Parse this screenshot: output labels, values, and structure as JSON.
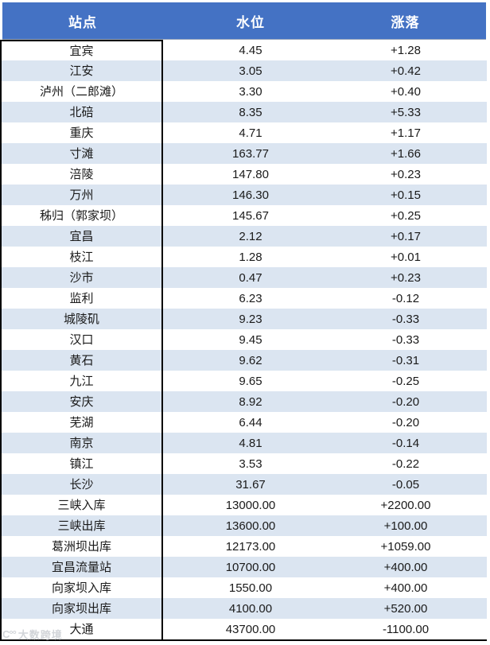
{
  "colors": {
    "header_bg": "#4472C4",
    "stripe": "#DBE5F1",
    "first_column_border": "#000000",
    "header_text": "#ffffff",
    "body_text": "#1a1a1a"
  },
  "chart_data": {
    "type": "table",
    "title": "",
    "columns": [
      "站点",
      "水位",
      "涨落"
    ],
    "rows": [
      [
        "宜宾",
        "4.45",
        "+1.28"
      ],
      [
        "江安",
        "3.05",
        "+0.42"
      ],
      [
        "泸州（二郎滩）",
        "3.30",
        "+0.40"
      ],
      [
        "北碚",
        "8.35",
        "+5.33"
      ],
      [
        "重庆",
        "4.71",
        "+1.17"
      ],
      [
        "寸滩",
        "163.77",
        "+1.66"
      ],
      [
        "涪陵",
        "147.80",
        "+0.23"
      ],
      [
        "万州",
        "146.30",
        "+0.15"
      ],
      [
        "秭归（郭家坝）",
        "145.67",
        "+0.25"
      ],
      [
        "宜昌",
        "2.12",
        "+0.17"
      ],
      [
        "枝江",
        "1.28",
        "+0.01"
      ],
      [
        "沙市",
        "0.47",
        "+0.23"
      ],
      [
        "监利",
        "6.23",
        "-0.12"
      ],
      [
        "城陵矶",
        "9.23",
        "-0.33"
      ],
      [
        "汉口",
        "9.45",
        "-0.33"
      ],
      [
        "黄石",
        "9.62",
        "-0.31"
      ],
      [
        "九江",
        "9.65",
        "-0.25"
      ],
      [
        "安庆",
        "8.92",
        "-0.20"
      ],
      [
        "芜湖",
        "6.44",
        "-0.20"
      ],
      [
        "南京",
        "4.81",
        "-0.14"
      ],
      [
        "镇江",
        "3.53",
        "-0.22"
      ],
      [
        "长沙",
        "31.67",
        "-0.05"
      ],
      [
        "三峡入库",
        "13000.00",
        "+2200.00"
      ],
      [
        "三峡出库",
        "13600.00",
        "+100.00"
      ],
      [
        "葛洲坝出库",
        "12173.00",
        "+1059.00"
      ],
      [
        "宜昌流量站",
        "10700.00",
        "+400.00"
      ],
      [
        "向家坝入库",
        "1550.00",
        "+400.00"
      ],
      [
        "向家坝出库",
        "4100.00",
        "+520.00"
      ],
      [
        "大通",
        "43700.00",
        "-1100.00"
      ]
    ],
    "layout": {
      "striped_rows": true,
      "stripe_pattern": "even rows light blue, odd rows white",
      "first_column_outlined": true
    }
  },
  "watermark": {
    "logo_glyph": "C°°",
    "text": "大数跨境"
  }
}
